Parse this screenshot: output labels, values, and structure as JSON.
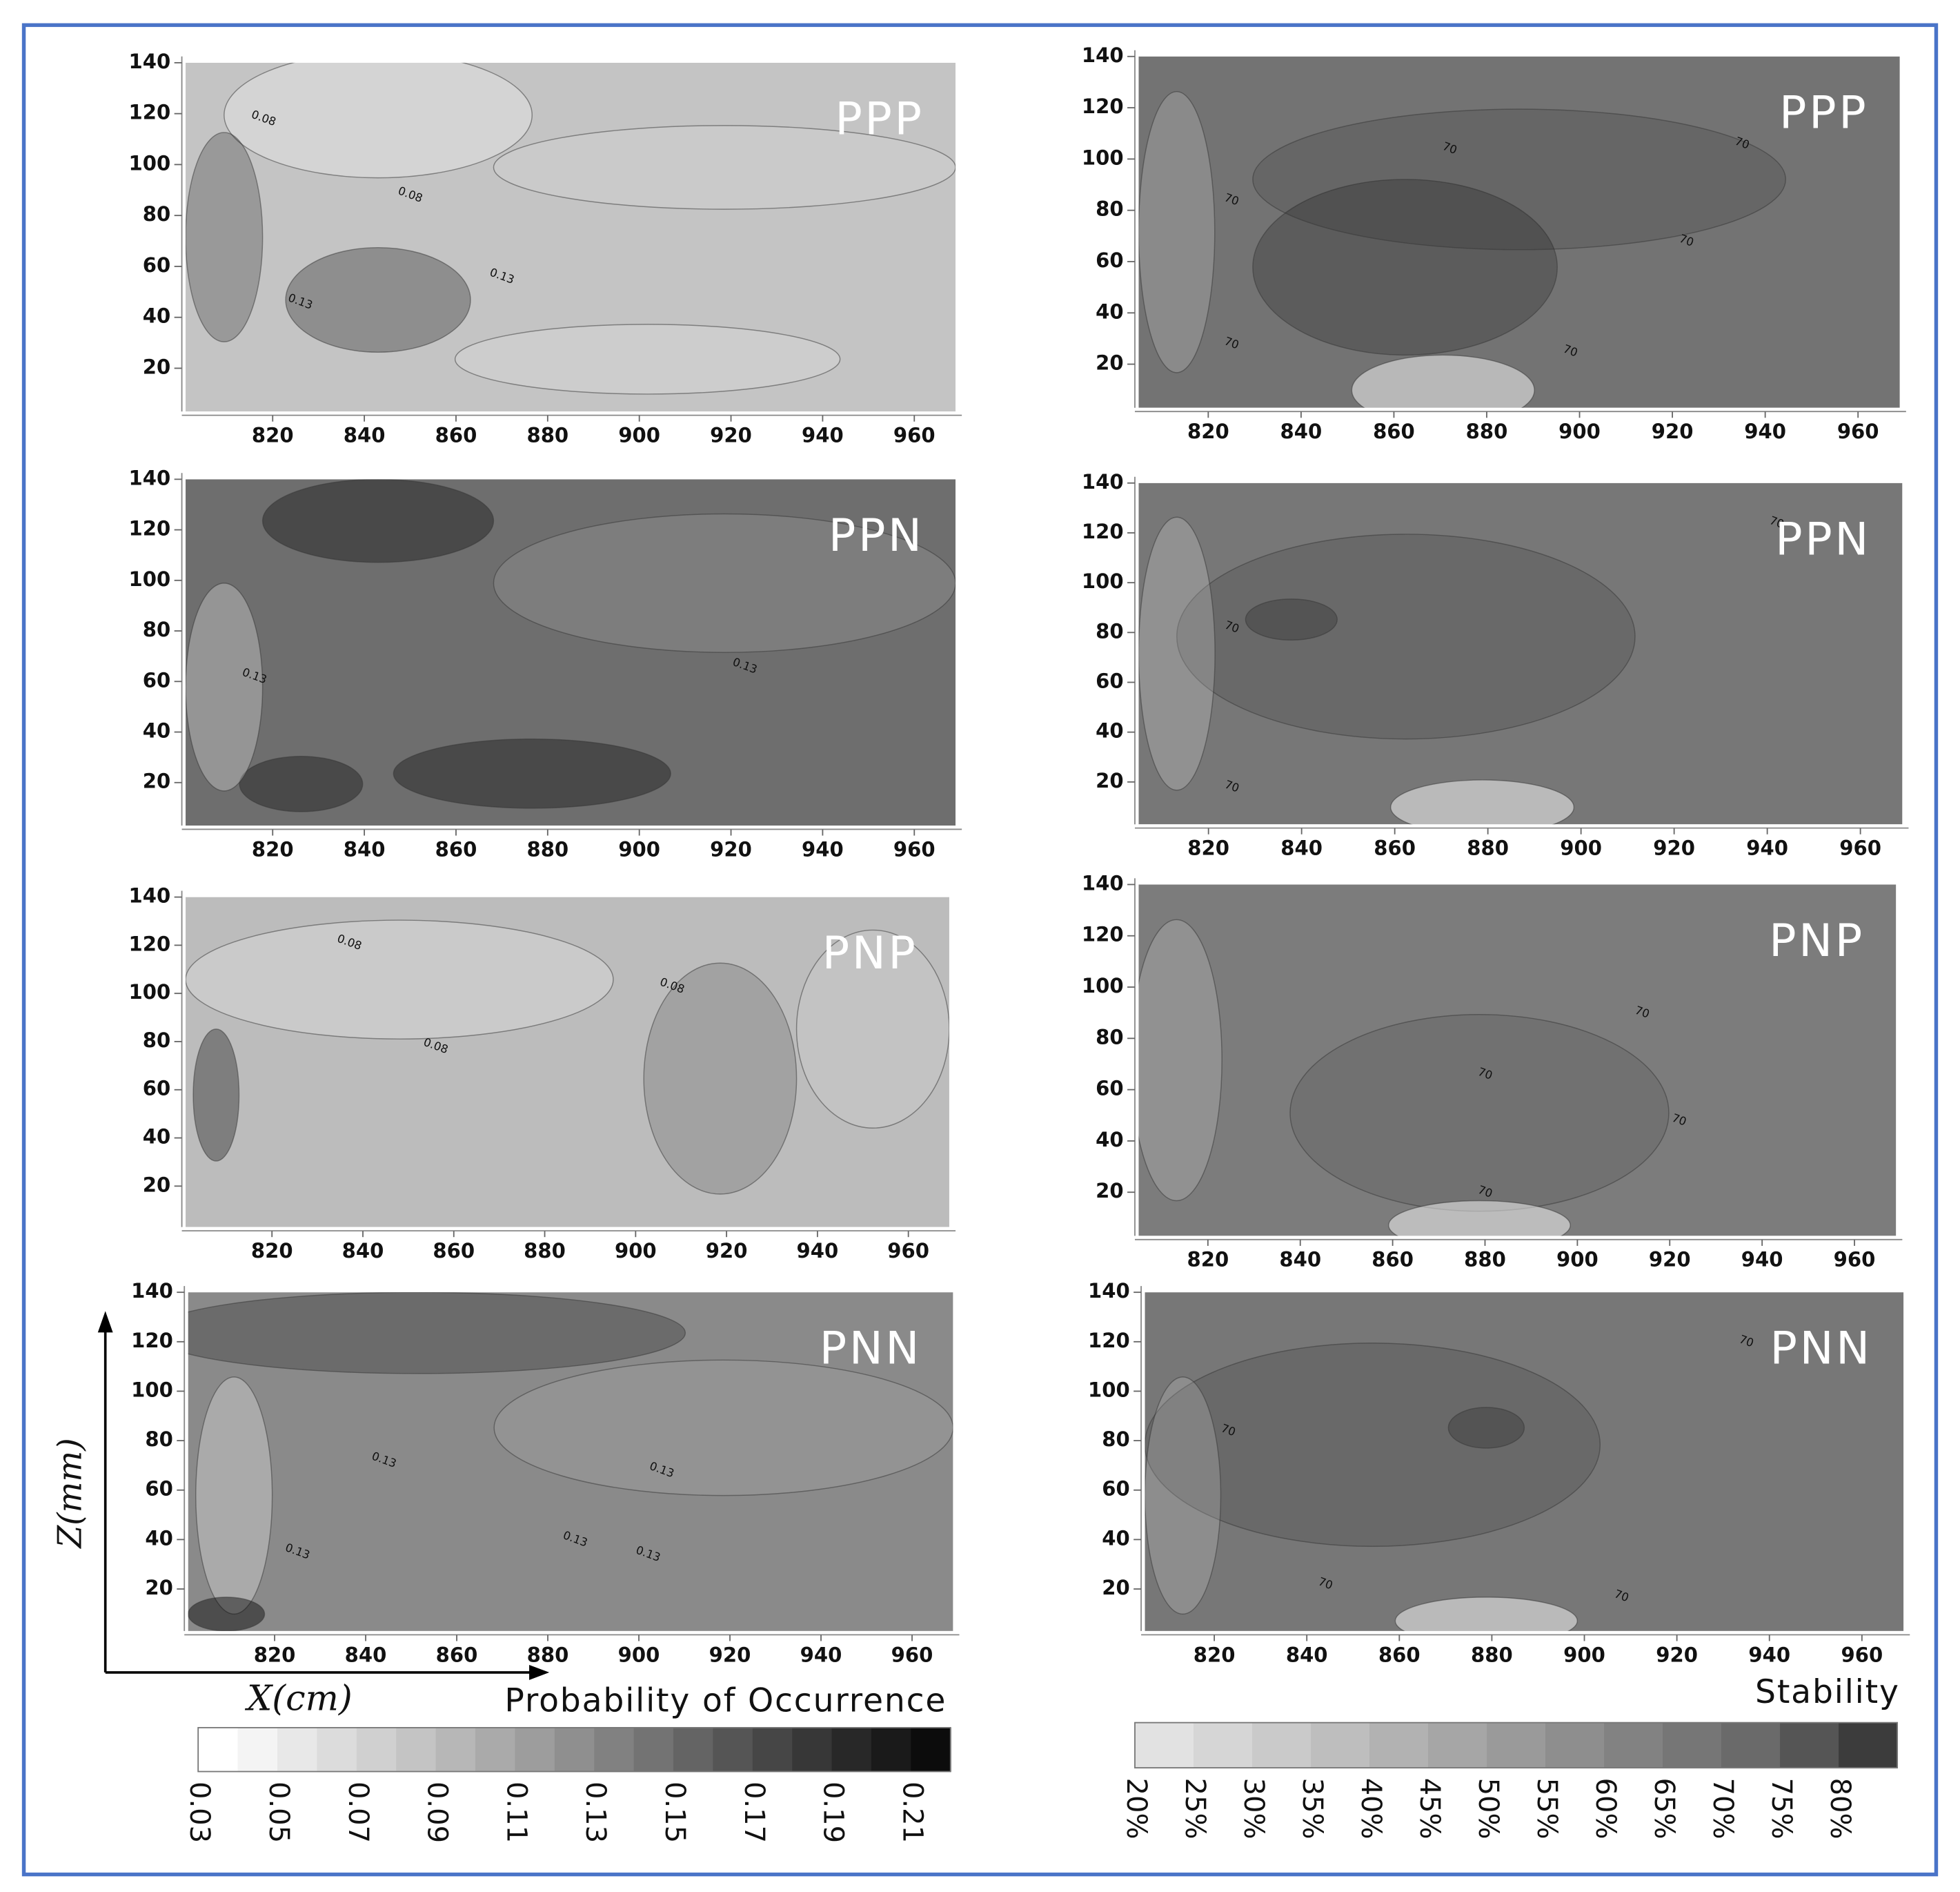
{
  "chart_data": [
    {
      "type": "contour",
      "title": "PPP",
      "xlim": [
        801,
        969
      ],
      "ylim": [
        3,
        140
      ],
      "xticks": [
        820,
        840,
        860,
        880,
        900,
        920,
        940,
        960
      ],
      "yticks": [
        20,
        40,
        60,
        80,
        100,
        120,
        140
      ],
      "background": "#c4c4c4",
      "contour_labels": [
        {
          "value": 0.08,
          "x": 818,
          "y": 118
        },
        {
          "value": 0.08,
          "x": 850,
          "y": 88
        },
        {
          "value": 0.13,
          "x": 870,
          "y": 56
        },
        {
          "value": 0.13,
          "x": 826,
          "y": 46
        }
      ]
    },
    {
      "type": "contour",
      "title": "PPP",
      "xlim": [
        805,
        969
      ],
      "ylim": [
        3,
        140
      ],
      "xticks": [
        820,
        840,
        860,
        880,
        900,
        920,
        940,
        960
      ],
      "yticks": [
        20,
        40,
        60,
        80,
        100,
        120,
        140
      ],
      "background": "#737373",
      "contour_labels": [
        {
          "value": 70,
          "x": 872,
          "y": 104
        },
        {
          "value": 70,
          "x": 935,
          "y": 106
        },
        {
          "value": 70,
          "x": 825,
          "y": 84
        },
        {
          "value": 70,
          "x": 923,
          "y": 68
        },
        {
          "value": 70,
          "x": 825,
          "y": 28
        },
        {
          "value": 70,
          "x": 898,
          "y": 25
        }
      ]
    },
    {
      "type": "contour",
      "title": "PPN",
      "xlim": [
        801,
        969
      ],
      "ylim": [
        3,
        140
      ],
      "xticks": [
        820,
        840,
        860,
        880,
        900,
        920,
        940,
        960
      ],
      "yticks": [
        20,
        40,
        60,
        80,
        100,
        120,
        140
      ],
      "background": "#6e6e6e",
      "contour_labels": [
        {
          "value": 0.13,
          "x": 816,
          "y": 62
        },
        {
          "value": 0.13,
          "x": 923,
          "y": 66
        }
      ]
    },
    {
      "type": "contour",
      "title": "PPN",
      "xlim": [
        805,
        969
      ],
      "ylim": [
        3,
        140
      ],
      "xticks": [
        820,
        840,
        860,
        880,
        900,
        920,
        940,
        960
      ],
      "yticks": [
        20,
        40,
        60,
        80,
        100,
        120,
        140
      ],
      "background": "#777777",
      "contour_labels": [
        {
          "value": 70,
          "x": 825,
          "y": 82
        },
        {
          "value": 70,
          "x": 825,
          "y": 18
        },
        {
          "value": 70,
          "x": 942,
          "y": 124
        }
      ]
    },
    {
      "type": "contour",
      "title": "PNP",
      "xlim": [
        801,
        969
      ],
      "ylim": [
        3,
        140
      ],
      "xticks": [
        820,
        840,
        860,
        880,
        900,
        920,
        940,
        960
      ],
      "yticks": [
        20,
        40,
        60,
        80,
        100,
        120,
        140
      ],
      "background": "#bcbcbc",
      "contour_labels": [
        {
          "value": 0.08,
          "x": 837,
          "y": 121
        },
        {
          "value": 0.08,
          "x": 908,
          "y": 103
        },
        {
          "value": 0.08,
          "x": 856,
          "y": 78
        }
      ]
    },
    {
      "type": "contour",
      "title": "PNP",
      "xlim": [
        805,
        969
      ],
      "ylim": [
        3,
        140
      ],
      "xticks": [
        820,
        840,
        860,
        880,
        900,
        920,
        940,
        960
      ],
      "yticks": [
        20,
        40,
        60,
        80,
        100,
        120,
        140
      ],
      "background": "#7c7c7c",
      "contour_labels": [
        {
          "value": 70,
          "x": 914,
          "y": 90
        },
        {
          "value": 70,
          "x": 880,
          "y": 66
        },
        {
          "value": 70,
          "x": 922,
          "y": 48
        },
        {
          "value": 70,
          "x": 880,
          "y": 20
        }
      ]
    },
    {
      "type": "contour",
      "title": "PNN",
      "xlim": [
        801,
        969
      ],
      "ylim": [
        3,
        140
      ],
      "xticks": [
        820,
        840,
        860,
        880,
        900,
        920,
        940,
        960
      ],
      "yticks": [
        20,
        40,
        60,
        80,
        100,
        120,
        140
      ],
      "background": "#8a8a8a",
      "xlabel": "X(cm)",
      "ylabel": "Z(mm)",
      "contour_labels": [
        {
          "value": 0.13,
          "x": 844,
          "y": 72
        },
        {
          "value": 0.13,
          "x": 905,
          "y": 68
        },
        {
          "value": 0.13,
          "x": 825,
          "y": 35
        },
        {
          "value": 0.13,
          "x": 886,
          "y": 40
        },
        {
          "value": 0.13,
          "x": 902,
          "y": 34
        }
      ]
    },
    {
      "type": "contour",
      "title": "PNN",
      "xlim": [
        805,
        969
      ],
      "ylim": [
        3,
        140
      ],
      "xticks": [
        820,
        840,
        860,
        880,
        900,
        920,
        940,
        960
      ],
      "yticks": [
        20,
        40,
        60,
        80,
        100,
        120,
        140
      ],
      "background": "#777777",
      "contour_labels": [
        {
          "value": 70,
          "x": 823,
          "y": 84
        },
        {
          "value": 70,
          "x": 844,
          "y": 22
        },
        {
          "value": 70,
          "x": 935,
          "y": 120
        },
        {
          "value": 70,
          "x": 908,
          "y": 17
        }
      ]
    },
    {
      "type": "colorbar",
      "title": "Probability of Occurrence",
      "lim": [
        0.03,
        0.22
      ],
      "ticks": [
        0.03,
        0.05,
        0.07,
        0.09,
        0.11,
        0.13,
        0.15,
        0.17,
        0.19,
        0.21
      ],
      "colors": [
        "#ffffff",
        "#f4f4f4",
        "#e8e8e8",
        "#dcdcdc",
        "#d0d0d0",
        "#c4c4c4",
        "#b7b7b7",
        "#aaaaaa",
        "#9d9d9d",
        "#8f8f8f",
        "#818181",
        "#737373",
        "#646464",
        "#555555",
        "#464646",
        "#373737",
        "#282828",
        "#1a1a1a",
        "#0c0c0c"
      ]
    },
    {
      "type": "colorbar",
      "title": "Stability",
      "lim": [
        20,
        85
      ],
      "ticks": [
        {
          "value": 20,
          "label": "20%"
        },
        {
          "value": 25,
          "label": "25%"
        },
        {
          "value": 30,
          "label": "30%"
        },
        {
          "value": 35,
          "label": "35%"
        },
        {
          "value": 40,
          "label": "40%"
        },
        {
          "value": 45,
          "label": "45%"
        },
        {
          "value": 50,
          "label": "50%"
        },
        {
          "value": 55,
          "label": "55%"
        },
        {
          "value": 60,
          "label": "60%"
        },
        {
          "value": 65,
          "label": "65%"
        },
        {
          "value": 70,
          "label": "70%"
        },
        {
          "value": 75,
          "label": "75%"
        },
        {
          "value": 80,
          "label": "80%"
        }
      ],
      "colors": [
        "#e2e2e2",
        "#d6d6d6",
        "#cacaca",
        "#bebebe",
        "#b2b2b2",
        "#a6a6a6",
        "#9a9a9a",
        "#8e8e8e",
        "#828282",
        "#767676",
        "#6a6a6a",
        "#555555",
        "#3c3c3c"
      ]
    }
  ]
}
